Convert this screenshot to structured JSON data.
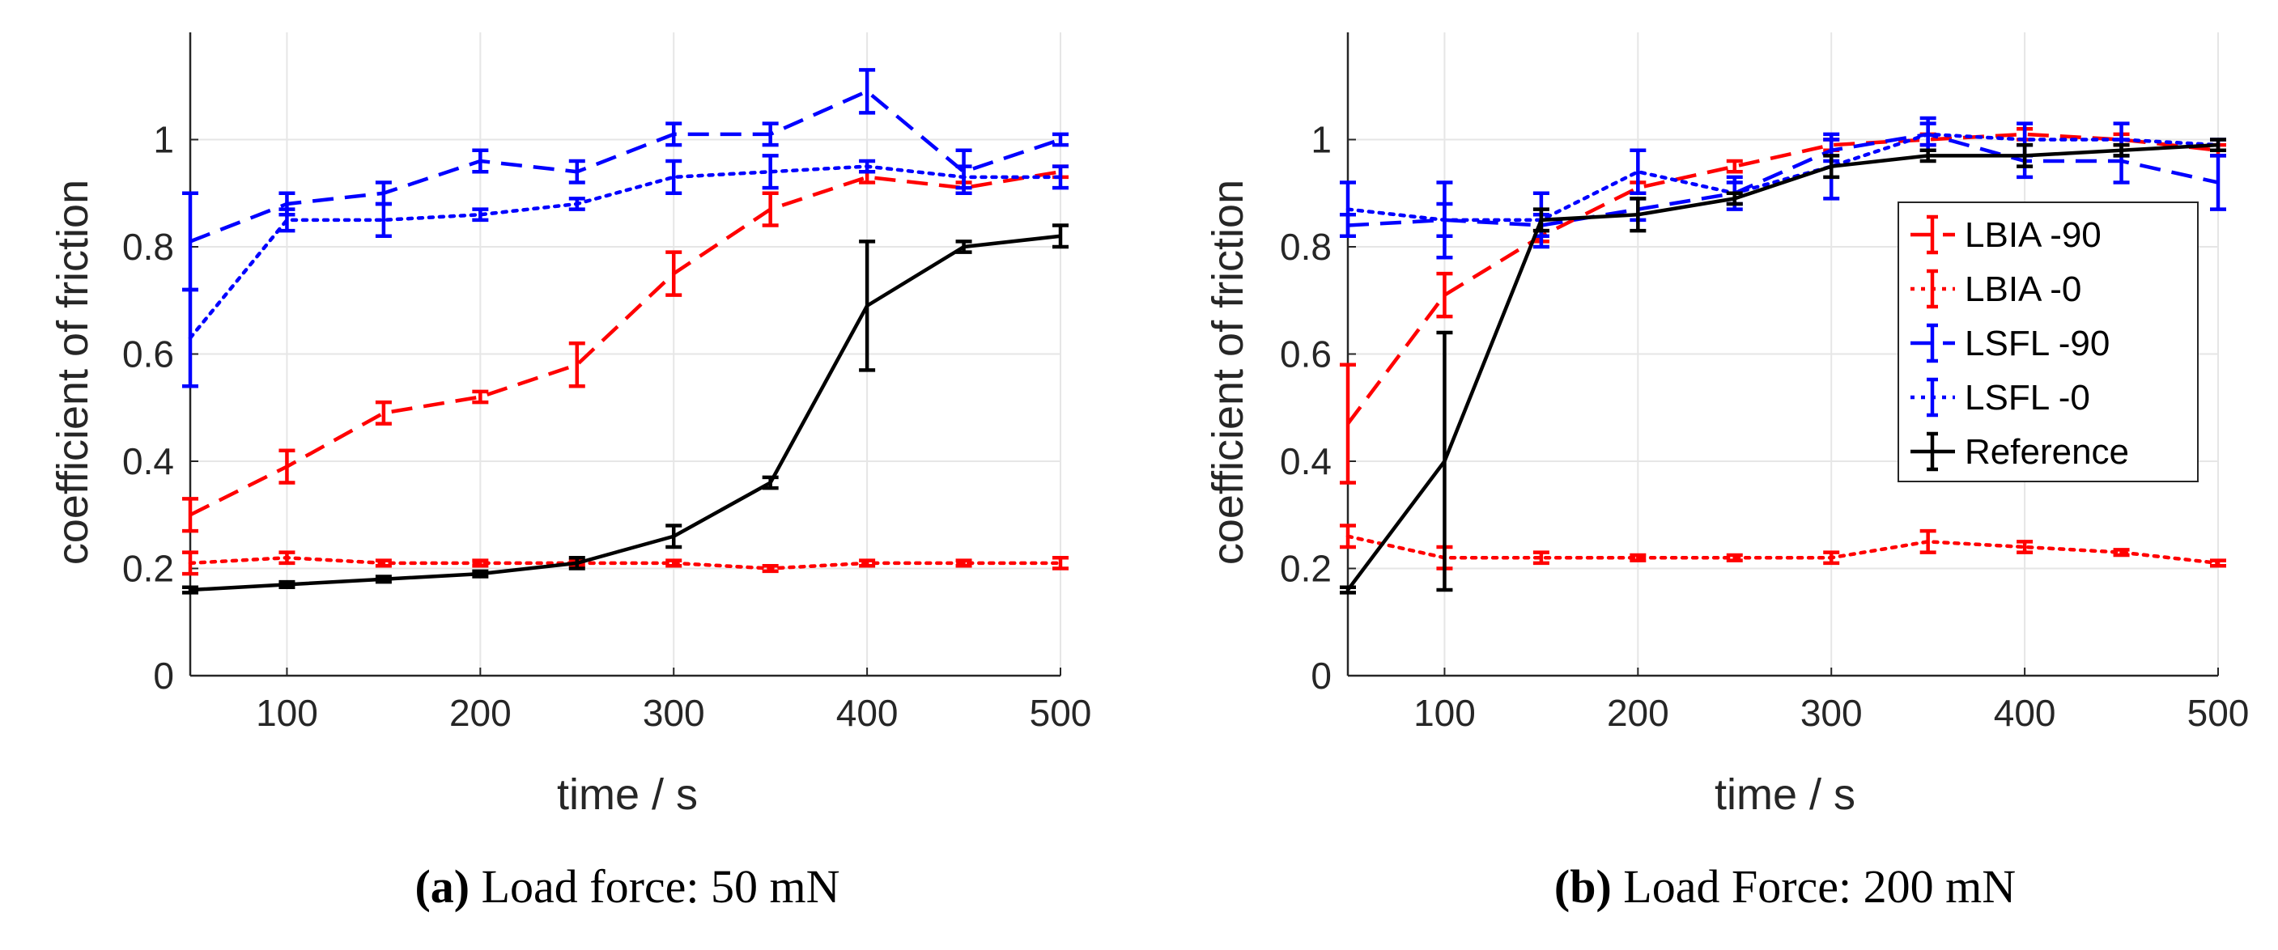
{
  "chart_data": [
    {
      "type": "line",
      "caption_letter": "a",
      "caption_text": "Load force: 50 mN",
      "xlabel": "time / s",
      "ylabel": "coefficient of friction",
      "xlim": [
        50,
        500
      ],
      "ylim": [
        0,
        1.2
      ],
      "xticks": [
        100,
        200,
        300,
        400,
        500
      ],
      "yticks": [
        0,
        0.2,
        0.4,
        0.6,
        0.8,
        1
      ],
      "grid": true,
      "x": [
        50,
        100,
        150,
        200,
        250,
        300,
        350,
        400,
        450,
        500
      ],
      "series": [
        {
          "name": "LBIA -90",
          "color": "#ff0000",
          "dash": "dashed",
          "values": [
            0.3,
            0.39,
            0.49,
            0.52,
            0.58,
            0.75,
            0.87,
            0.93,
            0.91,
            0.94
          ],
          "errors": [
            0.03,
            0.03,
            0.02,
            0.01,
            0.04,
            0.04,
            0.03,
            0.01,
            0.01,
            0.01
          ]
        },
        {
          "name": "LBIA -0",
          "color": "#ff0000",
          "dash": "dotted",
          "values": [
            0.21,
            0.22,
            0.21,
            0.21,
            0.21,
            0.21,
            0.2,
            0.21,
            0.21,
            0.21
          ],
          "errors": [
            0.02,
            0.01,
            0.005,
            0.005,
            0.005,
            0.005,
            0.005,
            0.005,
            0.005,
            0.01
          ]
        },
        {
          "name": "LSFL -90",
          "color": "#0000ff",
          "dash": "dashed",
          "values": [
            0.81,
            0.88,
            0.9,
            0.96,
            0.94,
            1.01,
            1.01,
            1.09,
            0.94,
            1.0
          ],
          "errors": [
            0.09,
            0.02,
            0.02,
            0.02,
            0.02,
            0.02,
            0.02,
            0.04,
            0.04,
            0.01
          ]
        },
        {
          "name": "LSFL -0",
          "color": "#0000ff",
          "dash": "dotted",
          "values": [
            0.63,
            0.85,
            0.85,
            0.86,
            0.88,
            0.93,
            0.94,
            0.95,
            0.93,
            0.93
          ],
          "errors": [
            0.09,
            0.02,
            0.03,
            0.01,
            0.01,
            0.03,
            0.03,
            0.01,
            0.02,
            0.02
          ]
        },
        {
          "name": "Reference",
          "color": "#000000",
          "dash": "solid",
          "values": [
            0.16,
            0.17,
            0.18,
            0.19,
            0.21,
            0.26,
            0.36,
            0.69,
            0.8,
            0.82
          ],
          "errors": [
            0.005,
            0.005,
            0.005,
            0.005,
            0.01,
            0.02,
            0.01,
            0.12,
            0.01,
            0.02
          ]
        }
      ]
    },
    {
      "type": "line",
      "caption_letter": "b",
      "caption_text": "Load Force: 200 mN",
      "xlabel": "time / s",
      "ylabel": "coefficient of friction",
      "xlim": [
        50,
        500
      ],
      "ylim": [
        0,
        1.2
      ],
      "xticks": [
        100,
        200,
        300,
        400,
        500
      ],
      "yticks": [
        0,
        0.2,
        0.4,
        0.6,
        0.8,
        1
      ],
      "grid": true,
      "legend": "right",
      "x": [
        50,
        100,
        150,
        200,
        250,
        300,
        350,
        400,
        450,
        500
      ],
      "series": [
        {
          "name": "LBIA -90",
          "color": "#ff0000",
          "dash": "dashed",
          "values": [
            0.47,
            0.71,
            0.82,
            0.91,
            0.95,
            0.99,
            1.0,
            1.01,
            1.0,
            0.98
          ],
          "errors": [
            0.11,
            0.04,
            0.01,
            0.01,
            0.01,
            0.01,
            0.01,
            0.01,
            0.01,
            0.01
          ]
        },
        {
          "name": "LBIA -0",
          "color": "#ff0000",
          "dash": "dotted",
          "values": [
            0.26,
            0.22,
            0.22,
            0.22,
            0.22,
            0.22,
            0.25,
            0.24,
            0.23,
            0.21
          ],
          "errors": [
            0.02,
            0.02,
            0.01,
            0.005,
            0.005,
            0.01,
            0.02,
            0.01,
            0.005,
            0.005
          ]
        },
        {
          "name": "LSFL -90",
          "color": "#0000ff",
          "dash": "dashed",
          "values": [
            0.84,
            0.85,
            0.84,
            0.87,
            0.9,
            0.98,
            1.01,
            0.96,
            0.96,
            0.92
          ],
          "errors": [
            0.02,
            0.03,
            0.02,
            0.02,
            0.02,
            0.02,
            0.02,
            0.03,
            0.04,
            0.05
          ]
        },
        {
          "name": "LSFL -0",
          "color": "#0000ff",
          "dash": "dotted",
          "values": [
            0.87,
            0.85,
            0.85,
            0.94,
            0.9,
            0.95,
            1.01,
            1.0,
            1.0,
            0.99
          ],
          "errors": [
            0.05,
            0.07,
            0.05,
            0.04,
            0.03,
            0.06,
            0.03,
            0.03,
            0.03,
            0.01
          ]
        },
        {
          "name": "Reference",
          "color": "#000000",
          "dash": "solid",
          "values": [
            0.16,
            0.4,
            0.85,
            0.86,
            0.89,
            0.95,
            0.97,
            0.97,
            0.98,
            0.99
          ],
          "errors": [
            0.005,
            0.24,
            0.02,
            0.03,
            0.01,
            0.02,
            0.01,
            0.02,
            0.01,
            0.01
          ]
        }
      ]
    }
  ]
}
